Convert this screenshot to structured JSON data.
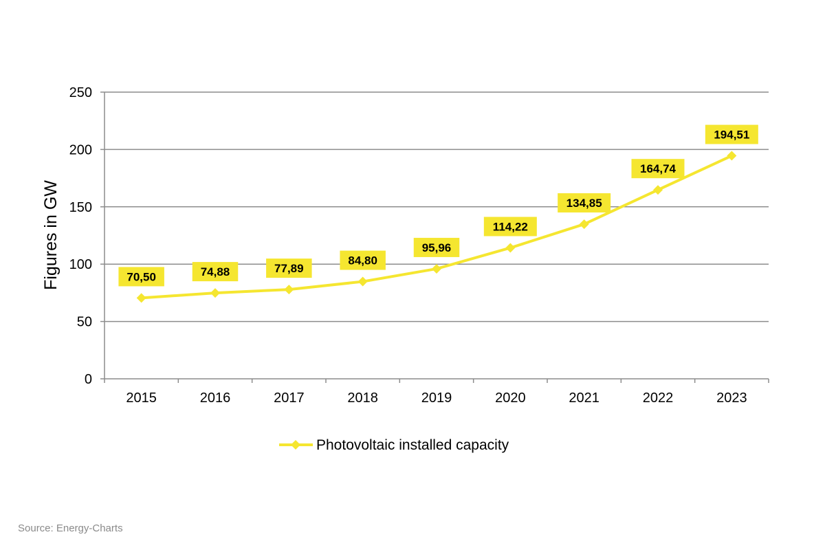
{
  "chart_data": {
    "type": "line",
    "x": [
      "2015",
      "2016",
      "2017",
      "2018",
      "2019",
      "2020",
      "2021",
      "2022",
      "2023"
    ],
    "series": [
      {
        "name": "Photovoltaic installed capacity",
        "values": [
          70.5,
          74.88,
          77.89,
          84.8,
          95.96,
          114.22,
          134.85,
          164.74,
          194.51
        ],
        "labels": [
          "70,50",
          "74,88",
          "77,89",
          "84,80",
          "95,96",
          "114,22",
          "134,85",
          "164,74",
          "194,51"
        ],
        "color": "#f5e630",
        "marker": "diamond"
      }
    ],
    "xlabel": "",
    "ylabel": "Figures in GW",
    "ylim": [
      0,
      250
    ],
    "yticks": [
      "0",
      "50",
      "100",
      "150",
      "200",
      "250"
    ],
    "grid": true,
    "legend": "bottom-center",
    "label_background": "#f5e630"
  },
  "source": "Source: Energy-Charts"
}
